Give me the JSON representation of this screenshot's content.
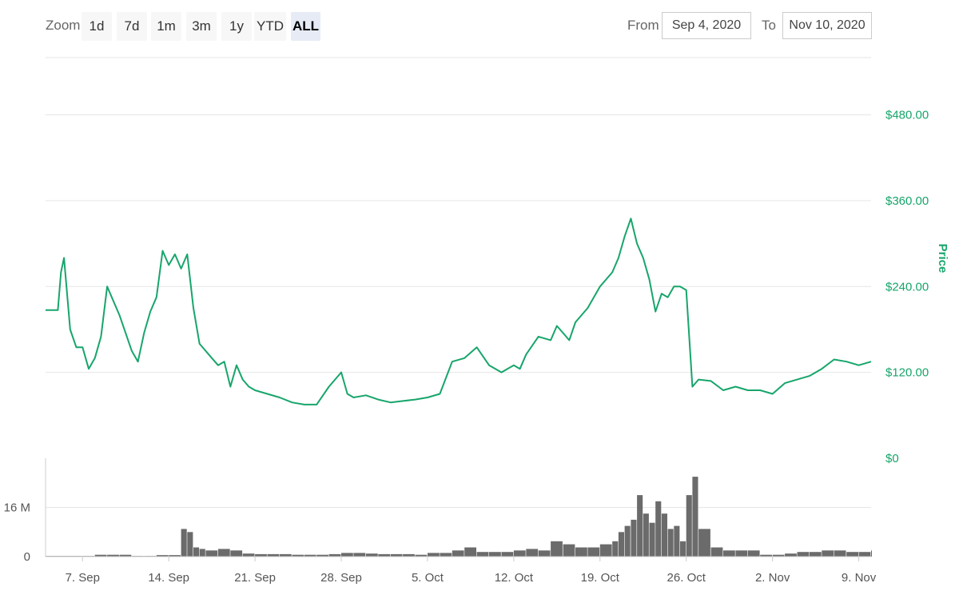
{
  "toolbar": {
    "zoom_label": "Zoom",
    "zoom_buttons": [
      "1d",
      "7d",
      "1m",
      "3m",
      "1y",
      "YTD",
      "ALL"
    ],
    "active_zoom": "ALL",
    "from_label": "From",
    "from_value": "Sep 4, 2020",
    "to_label": "To",
    "to_value": "Nov 10, 2020"
  },
  "colors": {
    "price_line": "#17a56b",
    "volume_bars": "#6b6b6b",
    "grid": "#e6e6e6",
    "active_zoom_bg": "#e6ebf5"
  },
  "chart_data": [
    {
      "type": "line",
      "title": "",
      "ylabel": "Price",
      "y_axis_side": "right",
      "ylim": [
        0,
        560
      ],
      "y_ticks": [
        0,
        120,
        240,
        360,
        480
      ],
      "y_tick_labels": [
        "$0",
        "$120.00",
        "$240.00",
        "$360.00",
        "$480.00"
      ],
      "grid": true,
      "series": [
        {
          "x": [
            "2020-09-04",
            "2020-09-05",
            "2020-09-05T06",
            "2020-09-05T12",
            "2020-09-06",
            "2020-09-06T12",
            "2020-09-07",
            "2020-09-07T12",
            "2020-09-08",
            "2020-09-08T12",
            "2020-09-09",
            "2020-09-10",
            "2020-09-10T12",
            "2020-09-11",
            "2020-09-11T12",
            "2020-09-12",
            "2020-09-12T12",
            "2020-09-13",
            "2020-09-13T12",
            "2020-09-14",
            "2020-09-14T12",
            "2020-09-15",
            "2020-09-15T12",
            "2020-09-16",
            "2020-09-16T12",
            "2020-09-17",
            "2020-09-17T12",
            "2020-09-18",
            "2020-09-18T12",
            "2020-09-19",
            "2020-09-19T12",
            "2020-09-20",
            "2020-09-20T12",
            "2020-09-21",
            "2020-09-22",
            "2020-09-23",
            "2020-09-24",
            "2020-09-25",
            "2020-09-26",
            "2020-09-27",
            "2020-09-28",
            "2020-09-28T12",
            "2020-09-29",
            "2020-09-30",
            "2020-10-01",
            "2020-10-02",
            "2020-10-03",
            "2020-10-04",
            "2020-10-05",
            "2020-10-06",
            "2020-10-07",
            "2020-10-08",
            "2020-10-09",
            "2020-10-10",
            "2020-10-11",
            "2020-10-12",
            "2020-10-12T12",
            "2020-10-13",
            "2020-10-14",
            "2020-10-15",
            "2020-10-15T12",
            "2020-10-16",
            "2020-10-16T12",
            "2020-10-17",
            "2020-10-18",
            "2020-10-19",
            "2020-10-20",
            "2020-10-20T12",
            "2020-10-21",
            "2020-10-21T12",
            "2020-10-22",
            "2020-10-22T12",
            "2020-10-23",
            "2020-10-23T12",
            "2020-10-24",
            "2020-10-24T12",
            "2020-10-25",
            "2020-10-25T12",
            "2020-10-26",
            "2020-10-26T12",
            "2020-10-27",
            "2020-10-28",
            "2020-10-29",
            "2020-10-30",
            "2020-10-31",
            "2020-11-01",
            "2020-11-02",
            "2020-11-03",
            "2020-11-04",
            "2020-11-05",
            "2020-11-06",
            "2020-11-07",
            "2020-11-08",
            "2020-11-09",
            "2020-11-10"
          ],
          "values": [
            207,
            207,
            260,
            280,
            180,
            155,
            155,
            125,
            140,
            170,
            240,
            200,
            175,
            150,
            135,
            175,
            205,
            225,
            290,
            270,
            285,
            265,
            285,
            210,
            160,
            150,
            140,
            130,
            135,
            100,
            130,
            110,
            100,
            95,
            90,
            85,
            78,
            75,
            75,
            100,
            120,
            90,
            85,
            88,
            82,
            78,
            80,
            82,
            85,
            90,
            135,
            140,
            155,
            130,
            120,
            130,
            125,
            145,
            170,
            165,
            185,
            175,
            165,
            190,
            210,
            240,
            260,
            280,
            310,
            335,
            300,
            280,
            250,
            205,
            230,
            225,
            240,
            240,
            235,
            100,
            110,
            108,
            95,
            100,
            95,
            95,
            90,
            105,
            110,
            115,
            125,
            138,
            135,
            130,
            135
          ]
        }
      ]
    },
    {
      "type": "bar",
      "title": "",
      "ylabel": "",
      "ylim": [
        0,
        32
      ],
      "y_ticks": [
        0,
        16
      ],
      "y_tick_labels": [
        "0",
        "16 M"
      ],
      "x_tick_labels": [
        "7. Sep",
        "14. Sep",
        "21. Sep",
        "28. Sep",
        "5. Oct",
        "12. Oct",
        "19. Oct",
        "26. Oct",
        "2. Nov",
        "9. Nov"
      ],
      "series": [
        {
          "x": [
            "2020-09-04",
            "2020-09-07",
            "2020-09-08",
            "2020-09-09",
            "2020-09-10",
            "2020-09-11",
            "2020-09-12",
            "2020-09-13",
            "2020-09-14",
            "2020-09-15",
            "2020-09-15T12",
            "2020-09-16",
            "2020-09-16T12",
            "2020-09-17",
            "2020-09-18",
            "2020-09-19",
            "2020-09-20",
            "2020-09-21",
            "2020-09-22",
            "2020-09-23",
            "2020-09-24",
            "2020-09-25",
            "2020-09-26",
            "2020-09-27",
            "2020-09-28",
            "2020-09-29",
            "2020-09-30",
            "2020-10-01",
            "2020-10-02",
            "2020-10-03",
            "2020-10-04",
            "2020-10-05",
            "2020-10-06",
            "2020-10-07",
            "2020-10-08",
            "2020-10-09",
            "2020-10-10",
            "2020-10-11",
            "2020-10-12",
            "2020-10-13",
            "2020-10-14",
            "2020-10-15",
            "2020-10-16",
            "2020-10-17",
            "2020-10-18",
            "2020-10-19",
            "2020-10-20",
            "2020-10-20T12",
            "2020-10-21",
            "2020-10-21T12",
            "2020-10-22",
            "2020-10-22T12",
            "2020-10-23",
            "2020-10-23T12",
            "2020-10-24",
            "2020-10-24T12",
            "2020-10-25",
            "2020-10-25T12",
            "2020-10-26",
            "2020-10-26T12",
            "2020-10-27",
            "2020-10-28",
            "2020-10-29",
            "2020-10-30",
            "2020-10-31",
            "2020-11-01",
            "2020-11-02",
            "2020-11-03",
            "2020-11-04",
            "2020-11-05",
            "2020-11-06",
            "2020-11-07",
            "2020-11-08",
            "2020-11-09",
            "2020-11-10"
          ],
          "values": [
            0.2,
            0.2,
            0.6,
            0.6,
            0.6,
            0.2,
            0.2,
            0.5,
            0.5,
            9,
            8,
            3,
            2.5,
            2,
            2.5,
            2,
            1,
            0.8,
            0.8,
            0.8,
            0.6,
            0.6,
            0.6,
            0.8,
            1.2,
            1.2,
            1,
            0.8,
            0.8,
            0.8,
            0.6,
            1.2,
            1.2,
            2,
            3,
            1.5,
            1.5,
            1.5,
            2,
            2.5,
            2,
            5,
            4,
            3,
            3,
            4,
            5,
            8,
            10,
            12,
            20,
            14,
            11,
            18,
            14,
            9,
            10,
            5,
            20,
            26,
            9,
            3,
            2,
            2,
            2,
            0.6,
            0.6,
            1,
            1.5,
            1.5,
            2,
            2,
            1.5,
            1.5,
            2
          ]
        }
      ]
    }
  ]
}
